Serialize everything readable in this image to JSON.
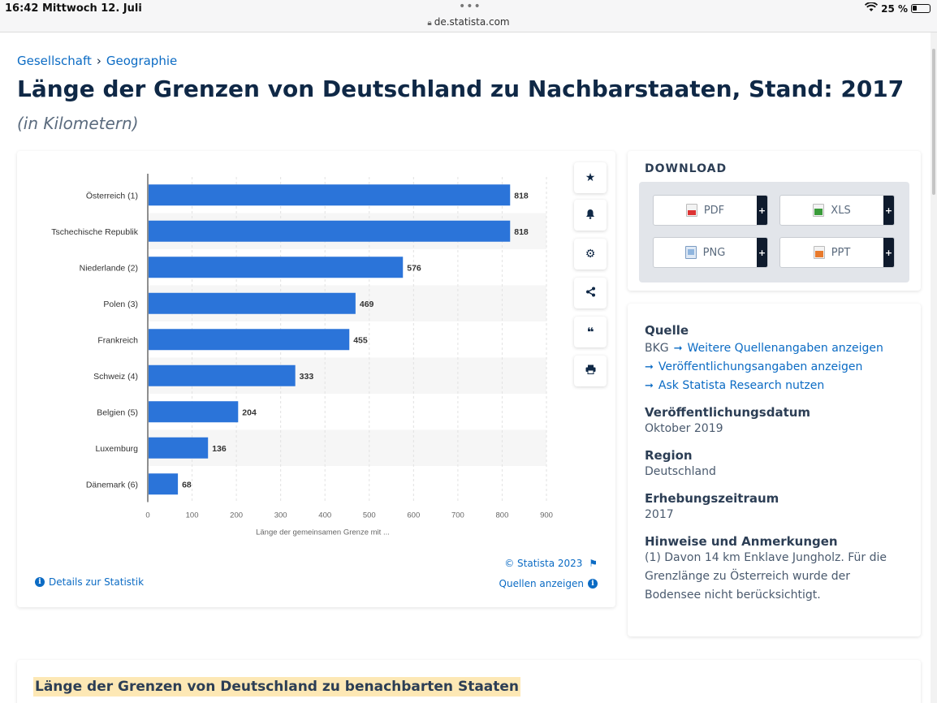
{
  "status_bar": {
    "time": "16:42",
    "date": "Mittwoch 12. Juli",
    "url": "de.statista.com",
    "battery": "25 %"
  },
  "breadcrumb": [
    "Gesellschaft",
    "Geographie"
  ],
  "page": {
    "title": "Länge der Grenzen von Deutschland zu Nachbarstaaten, Stand: 2017",
    "subtitle": "(in Kilometern)"
  },
  "chart_data": {
    "type": "bar",
    "orientation": "horizontal",
    "categories": [
      "Österreich (1)",
      "Tschechische Republik",
      "Niederlande (2)",
      "Polen (3)",
      "Frankreich",
      "Schweiz (4)",
      "Belgien (5)",
      "Luxemburg",
      "Dänemark (6)"
    ],
    "values": [
      818,
      818,
      576,
      469,
      455,
      333,
      204,
      136,
      68
    ],
    "xlabel": "Länge der gemeinsamen Grenze mit ...",
    "ylabel": "",
    "xlim": [
      0,
      900
    ],
    "xticks": [
      0,
      100,
      200,
      300,
      400,
      500,
      600,
      700,
      800,
      900
    ],
    "grid": true,
    "bar_color": "#2b74d9"
  },
  "chart_card": {
    "credit": "© Statista 2023",
    "details_link": "Details zur Statistik",
    "sources_link": "Quellen anzeigen",
    "side_icons": [
      "star-icon",
      "bell-icon",
      "gear-icon",
      "share-icon",
      "quote-icon",
      "print-icon"
    ]
  },
  "download": {
    "title": "DOWNLOAD",
    "buttons": [
      {
        "label": "PDF",
        "icon": "pdf-file-icon"
      },
      {
        "label": "XLS",
        "icon": "xls-file-icon"
      },
      {
        "label": "PNG",
        "icon": "png-file-icon"
      },
      {
        "label": "PPT",
        "icon": "ppt-file-icon"
      }
    ],
    "plus": "+"
  },
  "info": {
    "source_title": "Quelle",
    "source_value": "BKG",
    "source_links": [
      "Weitere Quellenangaben anzeigen",
      "Veröffentlichungsangaben anzeigen",
      "Ask Statista Research nutzen"
    ],
    "pub_date_title": "Veröffentlichungsdatum",
    "pub_date_value": "Oktober 2019",
    "region_title": "Region",
    "region_value": "Deutschland",
    "period_title": "Erhebungszeitraum",
    "period_value": "2017",
    "notes_title": "Hinweise und Anmerkungen",
    "notes_value": "(1) Davon 14 km Enklave Jungholz. Für die Grenzlänge zu Österreich wurde der Bodensee nicht berücksichtigt."
  },
  "bottom": {
    "title": "Länge der Grenzen von Deutschland zu benachbarten Staaten"
  },
  "colors": {
    "accent": "#0b6bc4",
    "heading": "#0f2846",
    "bar": "#2b74d9",
    "highlight": "#fde8b5"
  }
}
